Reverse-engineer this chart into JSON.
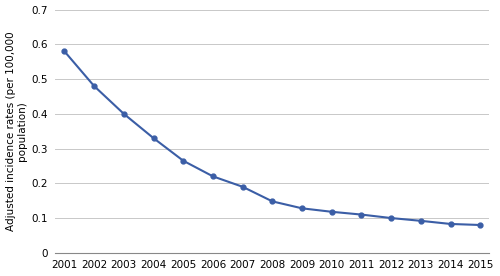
{
  "years": [
    2001,
    2002,
    2003,
    2004,
    2005,
    2006,
    2007,
    2008,
    2009,
    2010,
    2011,
    2012,
    2013,
    2014,
    2015
  ],
  "values": [
    0.58,
    0.48,
    0.4,
    0.33,
    0.265,
    0.22,
    0.19,
    0.148,
    0.128,
    0.118,
    0.11,
    0.1,
    0.092,
    0.083,
    0.08
  ],
  "line_color": "#3B5EA6",
  "marker": "o",
  "marker_size": 3.5,
  "linewidth": 1.5,
  "ylabel": "Adjusted incidence rates (per 100,000\npopulation)",
  "ylim": [
    0,
    0.7
  ],
  "yticks": [
    0,
    0.1,
    0.2,
    0.3,
    0.4,
    0.5,
    0.6,
    0.7
  ],
  "ytick_labels": [
    "0",
    "0.1",
    "0.2",
    "0.3",
    "0.4",
    "0.5",
    "0.6",
    "0.7"
  ],
  "grid_color": "#c8c8c8",
  "background_color": "#ffffff",
  "ylabel_fontsize": 7.5,
  "tick_fontsize": 7.5,
  "spine_color": "#888888"
}
